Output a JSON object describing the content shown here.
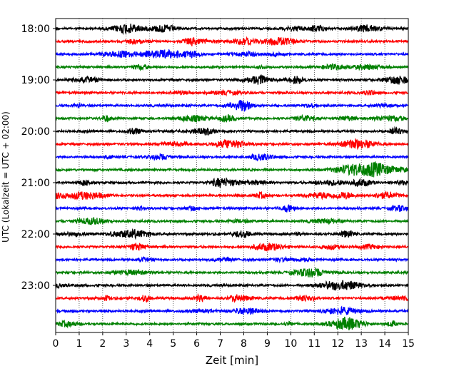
{
  "chart_data": {
    "type": "line",
    "title": "",
    "xlabel": "Zeit  [min]",
    "ylabel": "UTC (Lokalzeit = UTC + 02:00)",
    "xlim": [
      0,
      15
    ],
    "xticks": [
      0,
      1,
      2,
      3,
      4,
      5,
      6,
      7,
      8,
      9,
      10,
      11,
      12,
      13,
      14,
      15
    ],
    "grid": "vertical dotted",
    "legend": "none",
    "yticks": [
      {
        "label": "18:00",
        "row": 0
      },
      {
        "label": "19:00",
        "row": 4
      },
      {
        "label": "20:00",
        "row": 8
      },
      {
        "label": "21:00",
        "row": 12
      },
      {
        "label": "22:00",
        "row": 16
      },
      {
        "label": "23:00",
        "row": 20
      }
    ],
    "trace_colors": [
      "#000000",
      "#ff0000",
      "#0000ff",
      "#008000"
    ],
    "series": [
      {
        "row_start": "18:00",
        "color": "#000000"
      },
      {
        "row_start": "18:15",
        "color": "#ff0000"
      },
      {
        "row_start": "18:30",
        "color": "#0000ff"
      },
      {
        "row_start": "18:45",
        "color": "#008000"
      },
      {
        "row_start": "19:00",
        "color": "#000000"
      },
      {
        "row_start": "19:15",
        "color": "#ff0000"
      },
      {
        "row_start": "19:30",
        "color": "#0000ff"
      },
      {
        "row_start": "19:45",
        "color": "#008000"
      },
      {
        "row_start": "20:00",
        "color": "#000000"
      },
      {
        "row_start": "20:15",
        "color": "#ff0000"
      },
      {
        "row_start": "20:30",
        "color": "#0000ff"
      },
      {
        "row_start": "20:45",
        "color": "#008000"
      },
      {
        "row_start": "21:00",
        "color": "#000000"
      },
      {
        "row_start": "21:15",
        "color": "#ff0000"
      },
      {
        "row_start": "21:30",
        "color": "#0000ff"
      },
      {
        "row_start": "21:45",
        "color": "#008000"
      },
      {
        "row_start": "22:00",
        "color": "#000000"
      },
      {
        "row_start": "22:15",
        "color": "#ff0000"
      },
      {
        "row_start": "22:30",
        "color": "#0000ff"
      },
      {
        "row_start": "22:45",
        "color": "#008000"
      },
      {
        "row_start": "23:00",
        "color": "#000000"
      },
      {
        "row_start": "23:15",
        "color": "#ff0000"
      },
      {
        "row_start": "23:30",
        "color": "#0000ff"
      },
      {
        "row_start": "23:45",
        "color": "#008000"
      }
    ]
  }
}
